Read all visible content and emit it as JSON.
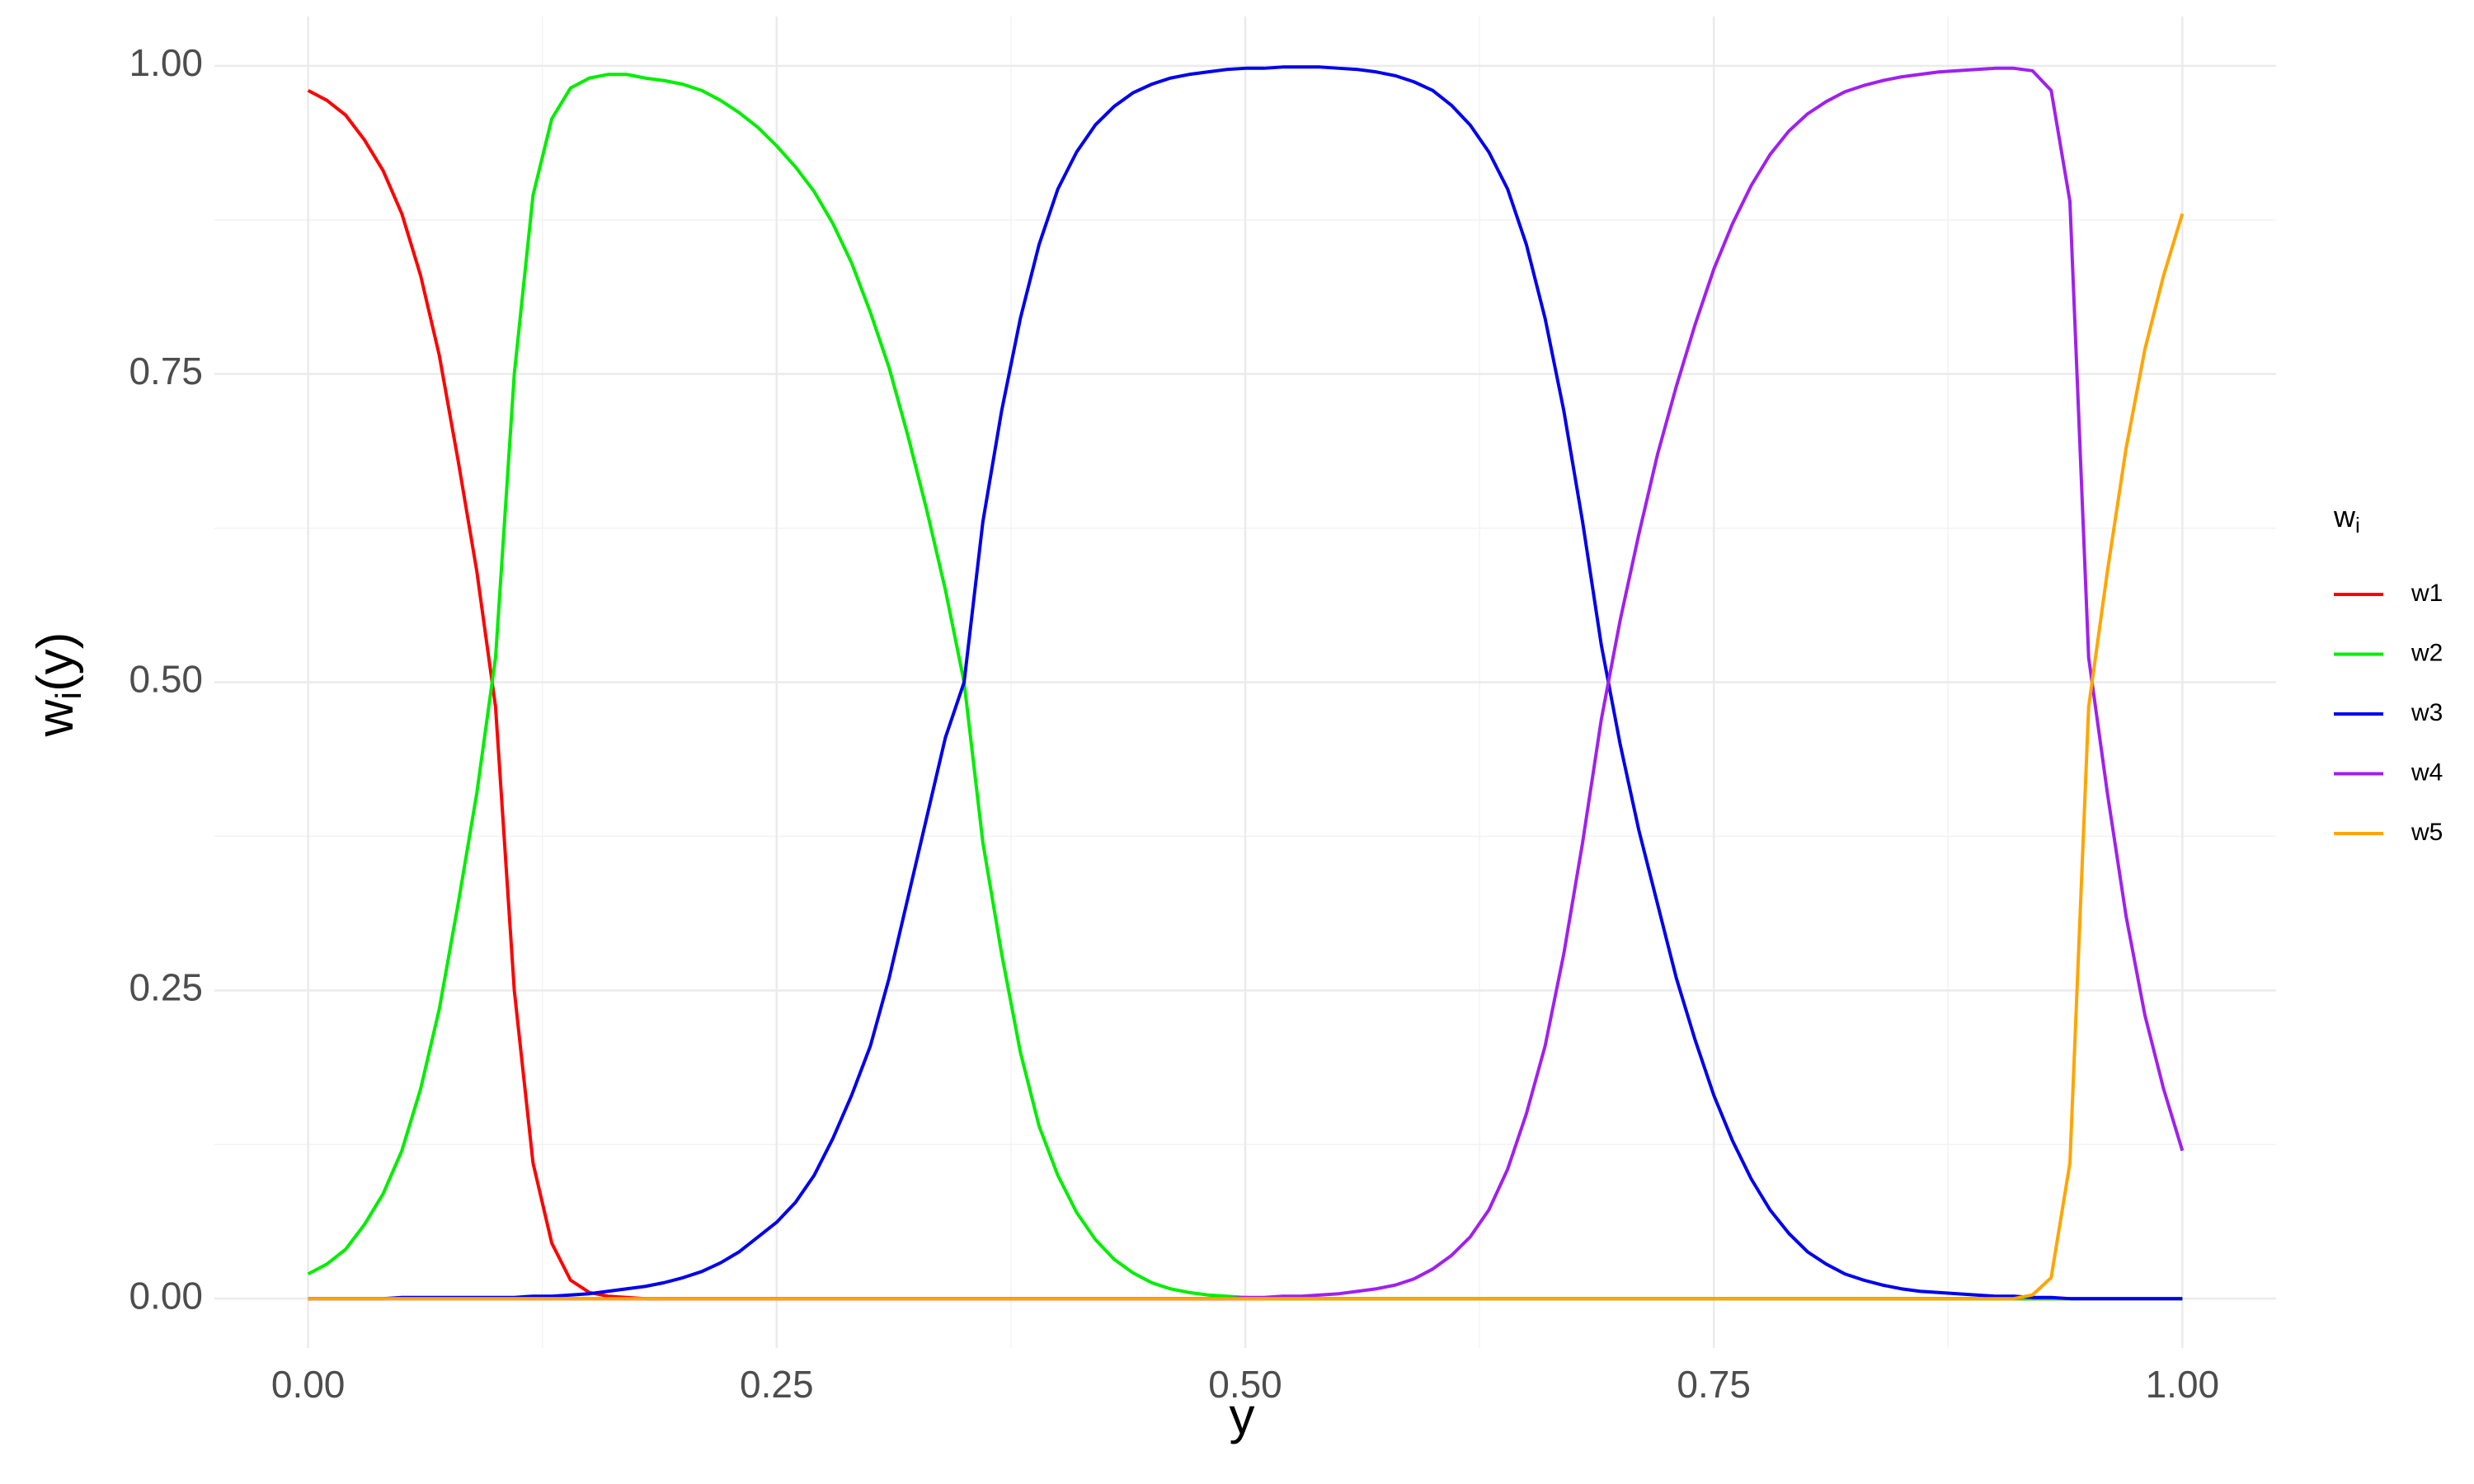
{
  "chart_data": {
    "type": "line",
    "xlabel": "y",
    "ylabel": {
      "main": "w",
      "subscript": "i",
      "suffix": "(y)"
    },
    "legend_title": {
      "main": "w",
      "subscript": "i"
    },
    "legend": "right",
    "grid": true,
    "xlim": [
      -0.05,
      1.05
    ],
    "ylim": [
      -0.04,
      1.04
    ],
    "xticks": [
      {
        "value": 0,
        "label": "0.00"
      },
      {
        "value": 0.25,
        "label": "0.25"
      },
      {
        "value": 0.5,
        "label": "0.50"
      },
      {
        "value": 0.75,
        "label": "0.75"
      },
      {
        "value": 1,
        "label": "1.00"
      }
    ],
    "yticks": [
      {
        "value": 0,
        "label": "0.00"
      },
      {
        "value": 0.25,
        "label": "0.25"
      },
      {
        "value": 0.5,
        "label": "0.50"
      },
      {
        "value": 0.75,
        "label": "0.75"
      },
      {
        "value": 1,
        "label": "1.00"
      }
    ],
    "x": [
      0,
      0.01,
      0.02,
      0.03,
      0.04,
      0.05,
      0.06,
      0.07,
      0.08,
      0.09,
      0.1,
      0.11,
      0.12,
      0.13,
      0.14,
      0.15,
      0.16,
      0.17,
      0.18,
      0.19,
      0.2,
      0.21,
      0.22,
      0.23,
      0.24,
      0.25,
      0.26,
      0.27,
      0.28,
      0.29,
      0.3,
      0.31,
      0.32,
      0.33,
      0.34,
      0.35,
      0.36,
      0.37,
      0.38,
      0.39,
      0.4,
      0.41,
      0.42,
      0.43,
      0.44,
      0.45,
      0.46,
      0.47,
      0.48,
      0.49,
      0.5,
      0.51,
      0.52,
      0.53,
      0.54,
      0.55,
      0.56,
      0.57,
      0.58,
      0.59,
      0.6,
      0.61,
      0.62,
      0.63,
      0.64,
      0.65,
      0.66,
      0.67,
      0.68,
      0.69,
      0.7,
      0.71,
      0.72,
      0.73,
      0.74,
      0.75,
      0.76,
      0.77,
      0.78,
      0.79,
      0.8,
      0.81,
      0.82,
      0.83,
      0.84,
      0.85,
      0.86,
      0.87,
      0.88,
      0.89,
      0.9,
      0.91,
      0.92,
      0.93,
      0.94,
      0.95,
      0.96,
      0.97,
      0.98,
      0.99,
      1
    ],
    "series": [
      {
        "name": "w1",
        "color": "#ff0000",
        "values": [
          0.98,
          0.972,
          0.96,
          0.94,
          0.915,
          0.88,
          0.83,
          0.765,
          0.68,
          0.59,
          0.48,
          0.25,
          0.11,
          0.045,
          0.015,
          0.005,
          0.002,
          0.001,
          0,
          0,
          0,
          0,
          0,
          0,
          0,
          0,
          0,
          0,
          0,
          0,
          0,
          0,
          0,
          0,
          0,
          0,
          0,
          0,
          0,
          0,
          0,
          0,
          0,
          0,
          0,
          0,
          0,
          0,
          0,
          0,
          0,
          0,
          0,
          0,
          0,
          0,
          0,
          0,
          0,
          0,
          0,
          0,
          0,
          0,
          0,
          0,
          0,
          0,
          0,
          0,
          0,
          0,
          0,
          0,
          0,
          0,
          0,
          0,
          0,
          0,
          0,
          0,
          0,
          0,
          0,
          0,
          0,
          0,
          0,
          0,
          0,
          0,
          0,
          0,
          0,
          0,
          0,
          0,
          0,
          0,
          0
        ]
      },
      {
        "name": "w2",
        "color": "#00ee00",
        "values": [
          0.02,
          0.028,
          0.04,
          0.06,
          0.085,
          0.12,
          0.17,
          0.235,
          0.32,
          0.41,
          0.52,
          0.75,
          0.895,
          0.957,
          0.982,
          0.99,
          0.993,
          0.993,
          0.99,
          0.988,
          0.985,
          0.98,
          0.972,
          0.962,
          0.95,
          0.935,
          0.918,
          0.898,
          0.872,
          0.84,
          0.8,
          0.755,
          0.7,
          0.64,
          0.575,
          0.5,
          0.37,
          0.28,
          0.2,
          0.14,
          0.1,
          0.07,
          0.048,
          0.032,
          0.021,
          0.013,
          0.008,
          0.005,
          0.003,
          0.002,
          0.001,
          0,
          0,
          0,
          0,
          0,
          0,
          0,
          0,
          0,
          0,
          0,
          0,
          0,
          0,
          0,
          0,
          0,
          0,
          0,
          0,
          0,
          0,
          0,
          0,
          0,
          0,
          0,
          0,
          0,
          0,
          0,
          0,
          0,
          0,
          0,
          0,
          0,
          0,
          0,
          0,
          0,
          0,
          0,
          0,
          0,
          0,
          0,
          0,
          0,
          0
        ]
      },
      {
        "name": "w3",
        "color": "#0000ee",
        "values": [
          0,
          0,
          0,
          0,
          0,
          0.001,
          0.001,
          0.001,
          0.001,
          0.001,
          0.001,
          0.001,
          0.002,
          0.002,
          0.003,
          0.004,
          0.006,
          0.008,
          0.01,
          0.013,
          0.017,
          0.022,
          0.029,
          0.038,
          0.05,
          0.062,
          0.078,
          0.1,
          0.13,
          0.165,
          0.205,
          0.26,
          0.325,
          0.39,
          0.455,
          0.5,
          0.63,
          0.72,
          0.795,
          0.855,
          0.9,
          0.93,
          0.952,
          0.967,
          0.978,
          0.985,
          0.99,
          0.993,
          0.995,
          0.997,
          0.998,
          0.998,
          0.999,
          0.999,
          0.999,
          0.998,
          0.997,
          0.995,
          0.992,
          0.987,
          0.98,
          0.968,
          0.952,
          0.93,
          0.9,
          0.855,
          0.795,
          0.72,
          0.63,
          0.53,
          0.45,
          0.38,
          0.32,
          0.26,
          0.21,
          0.165,
          0.128,
          0.097,
          0.072,
          0.053,
          0.038,
          0.028,
          0.02,
          0.015,
          0.011,
          0.008,
          0.006,
          0.005,
          0.004,
          0.003,
          0.002,
          0.002,
          0.001,
          0.001,
          0,
          0,
          0,
          0,
          0,
          0,
          0
        ]
      },
      {
        "name": "w4",
        "color": "#a020f0",
        "values": [
          0,
          0,
          0,
          0,
          0,
          0,
          0,
          0,
          0,
          0,
          0,
          0,
          0,
          0,
          0,
          0,
          0,
          0,
          0,
          0,
          0,
          0,
          0,
          0,
          0,
          0,
          0,
          0,
          0,
          0,
          0,
          0,
          0,
          0,
          0,
          0,
          0,
          0,
          0,
          0,
          0,
          0,
          0,
          0,
          0,
          0,
          0,
          0,
          0,
          0,
          0.001,
          0.001,
          0.002,
          0.002,
          0.003,
          0.004,
          0.006,
          0.008,
          0.011,
          0.016,
          0.024,
          0.035,
          0.05,
          0.072,
          0.105,
          0.15,
          0.205,
          0.28,
          0.37,
          0.47,
          0.55,
          0.62,
          0.685,
          0.74,
          0.79,
          0.835,
          0.872,
          0.903,
          0.928,
          0.947,
          0.961,
          0.971,
          0.979,
          0.984,
          0.988,
          0.991,
          0.993,
          0.995,
          0.996,
          0.997,
          0.998,
          0.998,
          0.996,
          0.98,
          0.89,
          0.52,
          0.41,
          0.31,
          0.23,
          0.17,
          0.12
        ]
      },
      {
        "name": "w5",
        "color": "#ffa500",
        "values": [
          0,
          0,
          0,
          0,
          0,
          0,
          0,
          0,
          0,
          0,
          0,
          0,
          0,
          0,
          0,
          0,
          0,
          0,
          0,
          0,
          0,
          0,
          0,
          0,
          0,
          0,
          0,
          0,
          0,
          0,
          0,
          0,
          0,
          0,
          0,
          0,
          0,
          0,
          0,
          0,
          0,
          0,
          0,
          0,
          0,
          0,
          0,
          0,
          0,
          0,
          0,
          0,
          0,
          0,
          0,
          0,
          0,
          0,
          0,
          0,
          0,
          0,
          0,
          0,
          0,
          0,
          0,
          0,
          0,
          0,
          0,
          0,
          0,
          0,
          0,
          0,
          0,
          0,
          0,
          0,
          0,
          0,
          0,
          0,
          0,
          0,
          0,
          0,
          0,
          0,
          0,
          0,
          0.003,
          0.017,
          0.11,
          0.48,
          0.59,
          0.69,
          0.77,
          0.83,
          0.88
        ]
      }
    ]
  }
}
